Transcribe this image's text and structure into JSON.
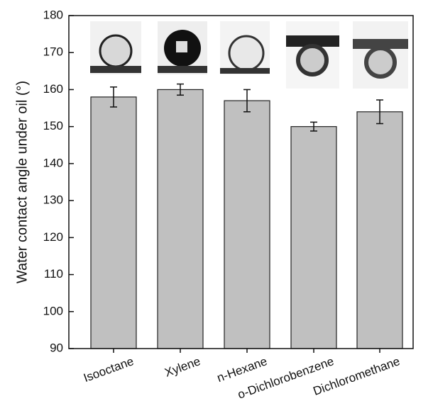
{
  "chart_data": {
    "type": "bar",
    "ylabel": "Water contact angle under oil (°)",
    "categories": [
      "Isooctane",
      "Xylene",
      "n-Hexane",
      "o-Dichlorobenzene",
      "Dichloromethane"
    ],
    "values": [
      158,
      160,
      157,
      150,
      154
    ],
    "errors": [
      2.7,
      1.5,
      3.0,
      1.2,
      3.2
    ],
    "color": "#c0c0c0",
    "ylim": [
      90,
      180
    ],
    "yticks": [
      90,
      100,
      110,
      120,
      130,
      140,
      150,
      160,
      170,
      180
    ]
  }
}
